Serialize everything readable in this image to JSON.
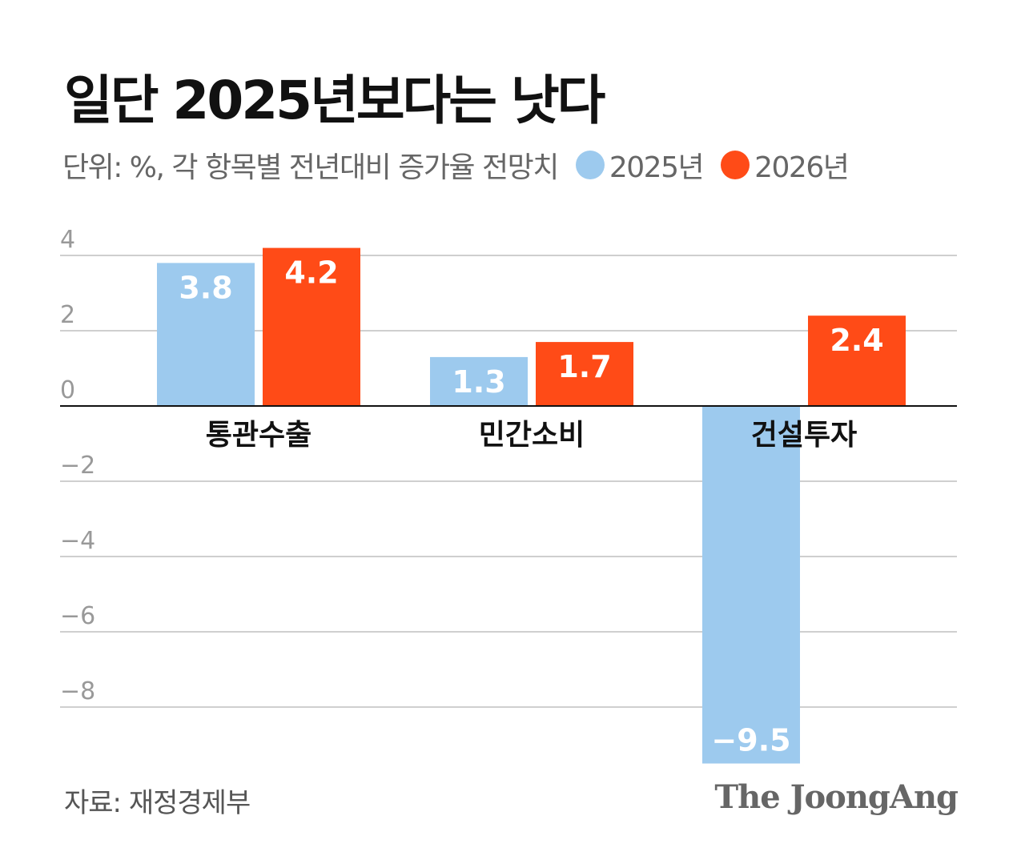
{
  "title": "일단 2025년보다는 낫다",
  "subtitle": "단위: %, 각 항목별 전년대비 증가율 전망치",
  "source": "자료: 재정경제부",
  "logo": "The JoongAng",
  "chart_data": {
    "type": "bar",
    "categories": [
      "통관수출",
      "민간소비",
      "건설투자"
    ],
    "series": [
      {
        "name": "2025년",
        "values": [
          3.8,
          1.3,
          -9.5
        ],
        "labels": [
          "3.8",
          "1.3",
          "−9.5"
        ],
        "color": "#9DCAEE"
      },
      {
        "name": "2026년",
        "values": [
          4.2,
          1.7,
          2.4
        ],
        "labels": [
          "4.2",
          "1.7",
          "2.4"
        ],
        "color": "#FF4B17"
      }
    ],
    "yticks": [
      4,
      2,
      0,
      -2,
      -4,
      -6,
      -8
    ],
    "ytick_labels": [
      "4",
      "2",
      "0",
      "−2",
      "−4",
      "−6",
      "−8"
    ],
    "ylim": [
      -9.5,
      4.2
    ],
    "grid": true,
    "legend": "top"
  }
}
